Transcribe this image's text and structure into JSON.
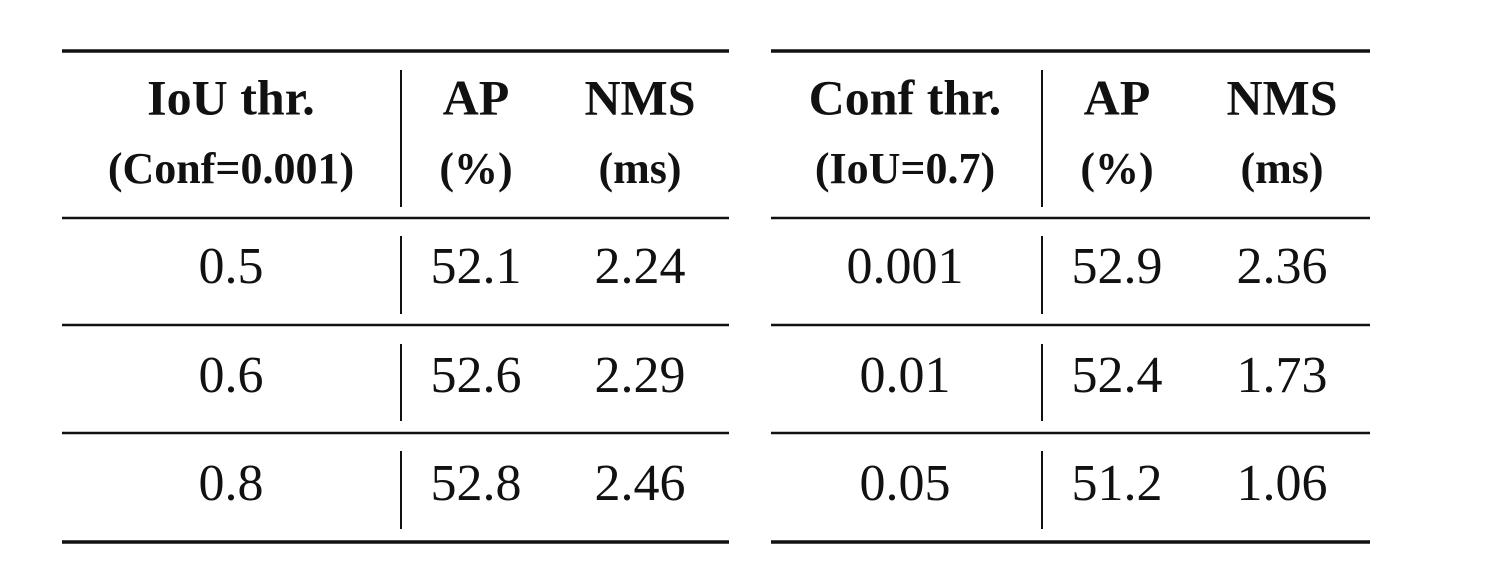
{
  "tables": [
    {
      "header": [
        [
          "IoU thr.",
          "(Conf=0.001)"
        ],
        [
          "AP",
          "(%)"
        ],
        [
          "NMS",
          "(ms)"
        ]
      ],
      "rows": [
        [
          "0.5",
          "52.1",
          "2.24"
        ],
        [
          "0.6",
          "52.6",
          "2.29"
        ],
        [
          "0.8",
          "52.8",
          "2.46"
        ]
      ]
    },
    {
      "header": [
        [
          "Conf thr.",
          "(IoU=0.7)"
        ],
        [
          "AP",
          "(%)"
        ],
        [
          "NMS",
          "(ms)"
        ]
      ],
      "rows": [
        [
          "0.001",
          "52.9",
          "2.36"
        ],
        [
          "0.01",
          "52.4",
          "1.73"
        ],
        [
          "0.05",
          "51.2",
          "1.06"
        ]
      ]
    }
  ]
}
